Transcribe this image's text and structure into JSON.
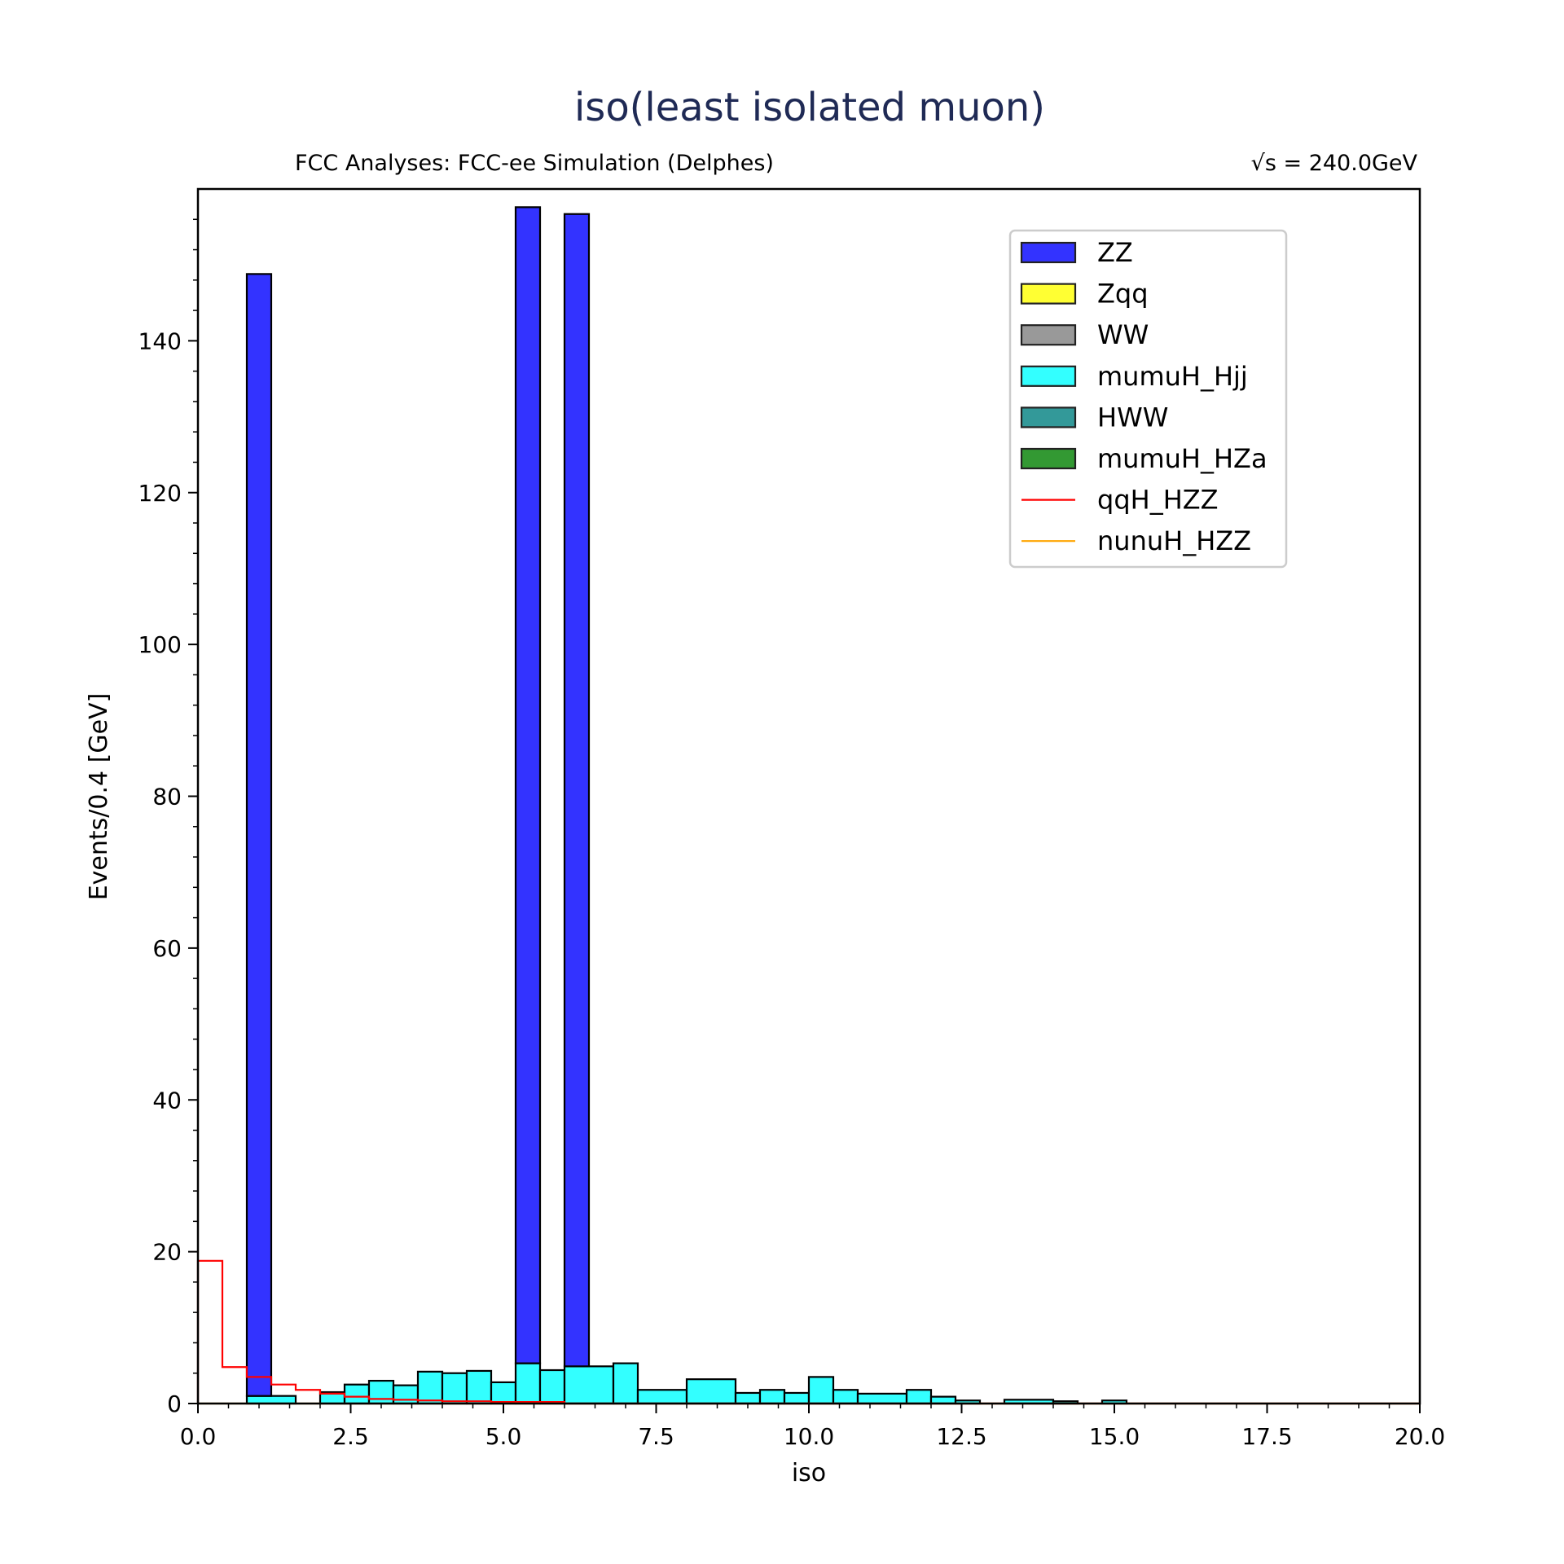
{
  "chart_data": {
    "type": "bar",
    "title": "iso(least isolated muon)",
    "subtitle_left": "FCC Analyses: FCC-ee Simulation (Delphes)",
    "subtitle_right": "√s = 240.0GeV",
    "xlabel": "iso",
    "ylabel": "Events/0.4 [GeV]",
    "xlim": [
      0,
      20
    ],
    "ylim": [
      0,
      160
    ],
    "bin_width": 0.4,
    "x_ticks": [
      0,
      2.5,
      5,
      7.5,
      10,
      12.5,
      15,
      17.5,
      20
    ],
    "x_tick_labels": [
      "0.0",
      "2.5",
      "5.0",
      "7.5",
      "10.0",
      "12.5",
      "15.0",
      "17.5",
      "20.0"
    ],
    "y_ticks": [
      0,
      20,
      40,
      60,
      80,
      100,
      120,
      140
    ],
    "y_tick_labels": [
      "0",
      "20",
      "40",
      "60",
      "80",
      "100",
      "120",
      "140"
    ],
    "legend_position": "upper right",
    "stacked": [
      {
        "name": "mumuH_Hjj",
        "color": "#33ffff",
        "bins": [
          {
            "x0": 0.8,
            "x1": 1.6,
            "value": 1.0
          },
          {
            "x0": 2.0,
            "x1": 2.4,
            "value": 1.5
          },
          {
            "x0": 2.4,
            "x1": 2.8,
            "value": 2.5
          },
          {
            "x0": 2.8,
            "x1": 3.2,
            "value": 3.0
          },
          {
            "x0": 3.2,
            "x1": 3.6,
            "value": 2.4
          },
          {
            "x0": 3.6,
            "x1": 4.0,
            "value": 4.2
          },
          {
            "x0": 4.0,
            "x1": 4.4,
            "value": 4.0
          },
          {
            "x0": 4.4,
            "x1": 4.8,
            "value": 4.3
          },
          {
            "x0": 4.8,
            "x1": 5.2,
            "value": 2.8
          },
          {
            "x0": 5.2,
            "x1": 5.6,
            "value": 5.3
          },
          {
            "x0": 5.6,
            "x1": 6.0,
            "value": 4.4
          },
          {
            "x0": 6.0,
            "x1": 6.8,
            "value": 4.9
          },
          {
            "x0": 6.8,
            "x1": 7.2,
            "value": 5.3
          },
          {
            "x0": 7.2,
            "x1": 8.0,
            "value": 1.8
          },
          {
            "x0": 8.0,
            "x1": 8.8,
            "value": 3.2
          },
          {
            "x0": 8.8,
            "x1": 9.2,
            "value": 1.4
          },
          {
            "x0": 9.2,
            "x1": 9.6,
            "value": 1.8
          },
          {
            "x0": 9.6,
            "x1": 10.0,
            "value": 1.4
          },
          {
            "x0": 10.0,
            "x1": 10.4,
            "value": 3.5
          },
          {
            "x0": 10.4,
            "x1": 10.8,
            "value": 1.8
          },
          {
            "x0": 10.8,
            "x1": 11.6,
            "value": 1.3
          },
          {
            "x0": 11.6,
            "x1": 12.0,
            "value": 1.8
          },
          {
            "x0": 12.0,
            "x1": 12.4,
            "value": 0.9
          },
          {
            "x0": 12.4,
            "x1": 12.8,
            "value": 0.4
          },
          {
            "x0": 13.2,
            "x1": 14.0,
            "value": 0.5
          },
          {
            "x0": 14.0,
            "x1": 14.4,
            "value": 0.3
          },
          {
            "x0": 14.8,
            "x1": 15.2,
            "value": 0.4
          }
        ]
      },
      {
        "name": "ZZ",
        "color": "#3333ff",
        "bins": [
          {
            "x0": 0.8,
            "x1": 1.2,
            "value": 147.8
          },
          {
            "x0": 5.2,
            "x1": 5.6,
            "value": 152.3
          },
          {
            "x0": 6.0,
            "x1": 6.4,
            "value": 151.8
          }
        ]
      }
    ],
    "line_series": [
      {
        "name": "qqH_HZZ",
        "color": "#ff0000",
        "bins": [
          {
            "x0": 0.0,
            "x1": 0.4,
            "value": 18.8
          },
          {
            "x0": 0.4,
            "x1": 0.8,
            "value": 4.8
          },
          {
            "x0": 0.8,
            "x1": 1.2,
            "value": 3.5
          },
          {
            "x0": 1.2,
            "x1": 1.6,
            "value": 2.5
          },
          {
            "x0": 1.6,
            "x1": 2.0,
            "value": 1.8
          },
          {
            "x0": 2.0,
            "x1": 2.4,
            "value": 1.3
          },
          {
            "x0": 2.4,
            "x1": 2.8,
            "value": 0.9
          },
          {
            "x0": 2.8,
            "x1": 3.2,
            "value": 0.6
          },
          {
            "x0": 3.2,
            "x1": 3.6,
            "value": 0.5
          },
          {
            "x0": 3.6,
            "x1": 4.0,
            "value": 0.4
          },
          {
            "x0": 4.0,
            "x1": 4.8,
            "value": 0.3
          },
          {
            "x0": 4.8,
            "x1": 6.0,
            "value": 0.2
          },
          {
            "x0": 6.0,
            "x1": 20.0,
            "value": 0.0
          }
        ]
      },
      {
        "name": "nunuH_HZZ",
        "color": "#ffa500",
        "bins": [
          {
            "x0": 0.0,
            "x1": 20.0,
            "value": 0.0
          }
        ]
      }
    ],
    "legend": [
      {
        "name": "ZZ",
        "color": "#3333ff",
        "kind": "patch"
      },
      {
        "name": "Zqq",
        "color": "#ffff33",
        "kind": "patch"
      },
      {
        "name": "WW",
        "color": "#999999",
        "kind": "patch"
      },
      {
        "name": "mumuH_Hjj",
        "color": "#33ffff",
        "kind": "patch"
      },
      {
        "name": "HWW",
        "color": "#339999",
        "kind": "patch"
      },
      {
        "name": "mumuH_HZa",
        "color": "#339933",
        "kind": "patch"
      },
      {
        "name": "qqH_HZZ",
        "color": "#ff0000",
        "kind": "line"
      },
      {
        "name": "nunuH_HZZ",
        "color": "#ffa500",
        "kind": "line"
      }
    ]
  }
}
